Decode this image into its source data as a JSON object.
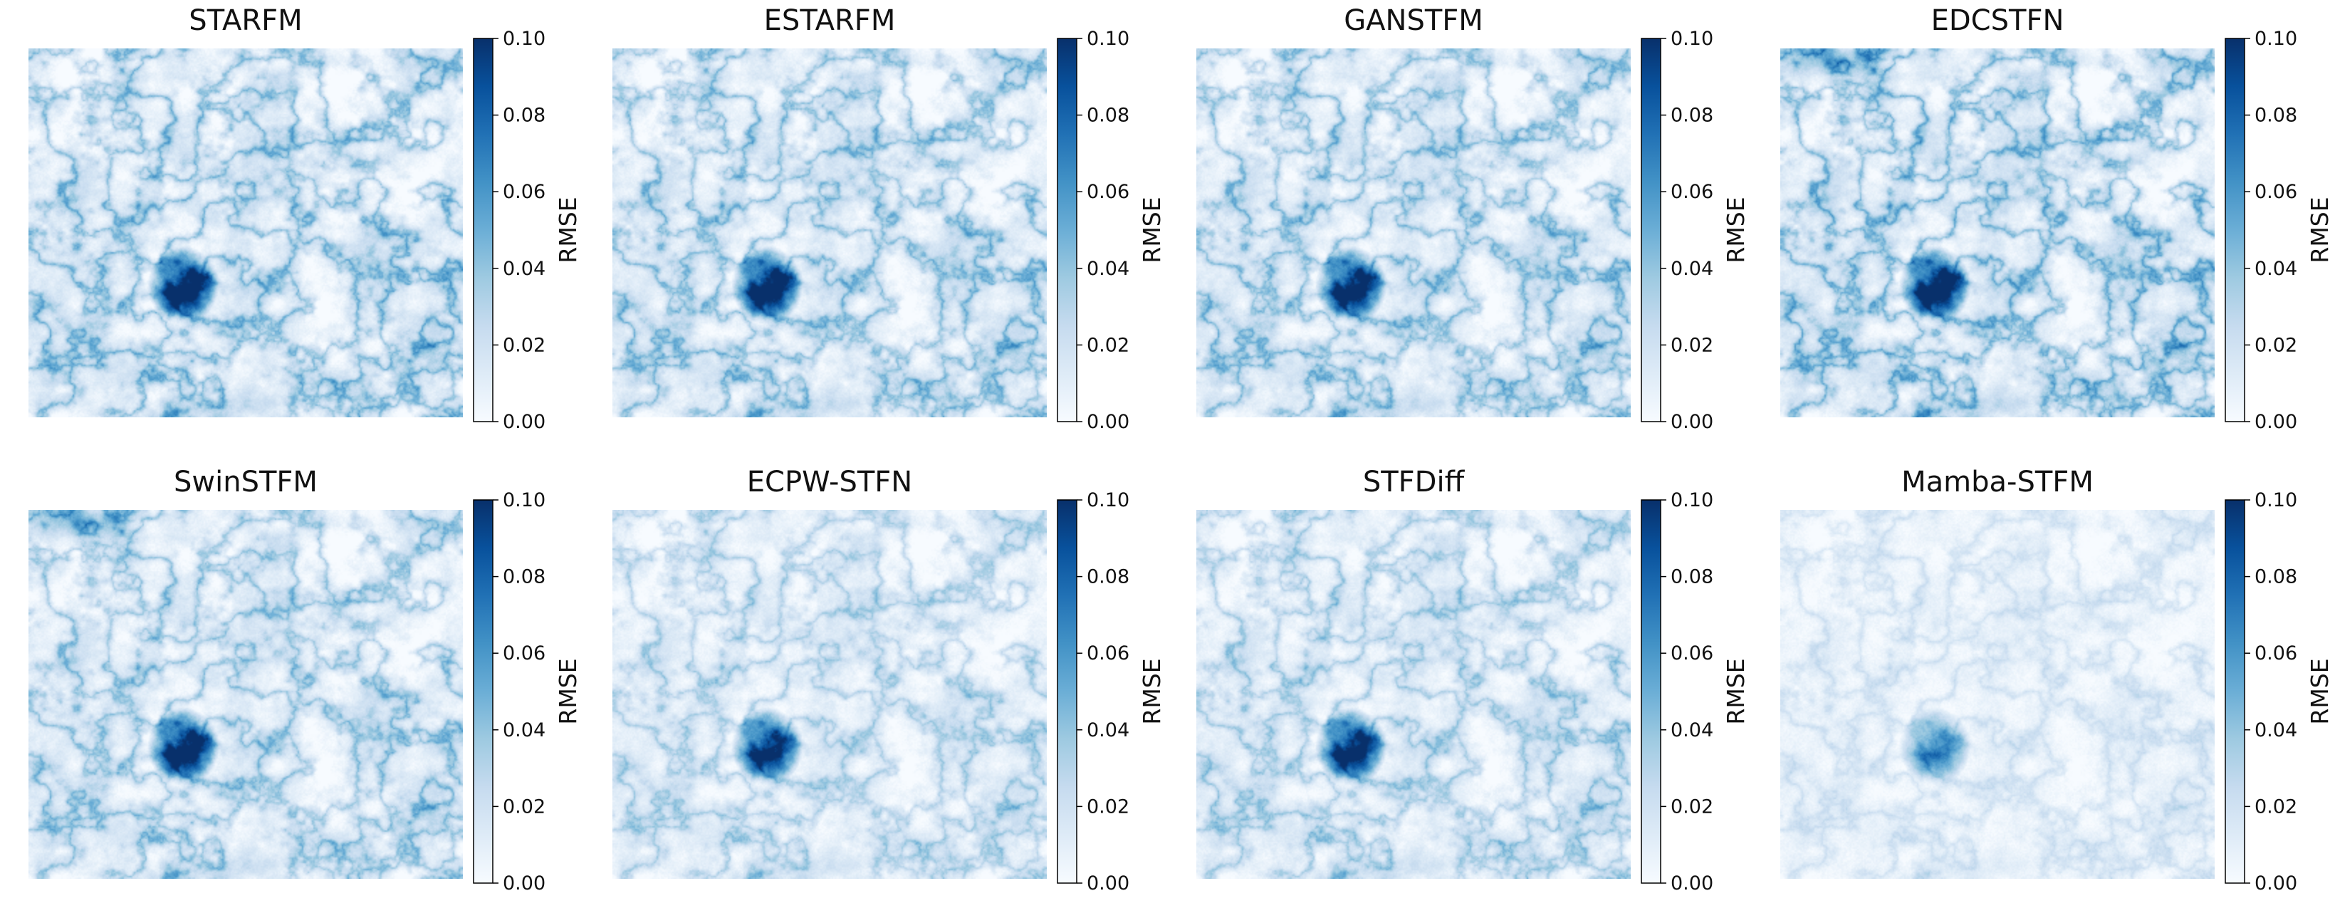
{
  "chart_data": {
    "type": "heatmap",
    "colormap": "Blues",
    "layout": "2 rows x 4 columns",
    "colorbar": {
      "label": "RMSE",
      "range": [
        0.0,
        0.1
      ],
      "ticks": [
        "0.00",
        "0.02",
        "0.04",
        "0.06",
        "0.08",
        "0.10"
      ]
    },
    "panels": [
      {
        "title": "STARFM",
        "intensity": 1.0,
        "hotspot": 1.0,
        "ne_patch": 0.0
      },
      {
        "title": "ESTARFM",
        "intensity": 0.95,
        "hotspot": 1.0,
        "ne_patch": 0.0
      },
      {
        "title": "GANSTFM",
        "intensity": 0.95,
        "hotspot": 0.95,
        "ne_patch": 0.0
      },
      {
        "title": "EDCSTFN",
        "intensity": 1.05,
        "hotspot": 1.0,
        "ne_patch": 0.9
      },
      {
        "title": "SwinSTFM",
        "intensity": 0.9,
        "hotspot": 1.0,
        "ne_patch": 0.9
      },
      {
        "title": "ECPW-STFN",
        "intensity": 0.75,
        "hotspot": 0.9,
        "ne_patch": 0.0
      },
      {
        "title": "STFDiff",
        "intensity": 0.8,
        "hotspot": 0.95,
        "ne_patch": 0.0
      },
      {
        "title": "Mamba-STFM",
        "intensity": 0.45,
        "hotspot": 0.6,
        "ne_patch": 0.0
      }
    ]
  }
}
